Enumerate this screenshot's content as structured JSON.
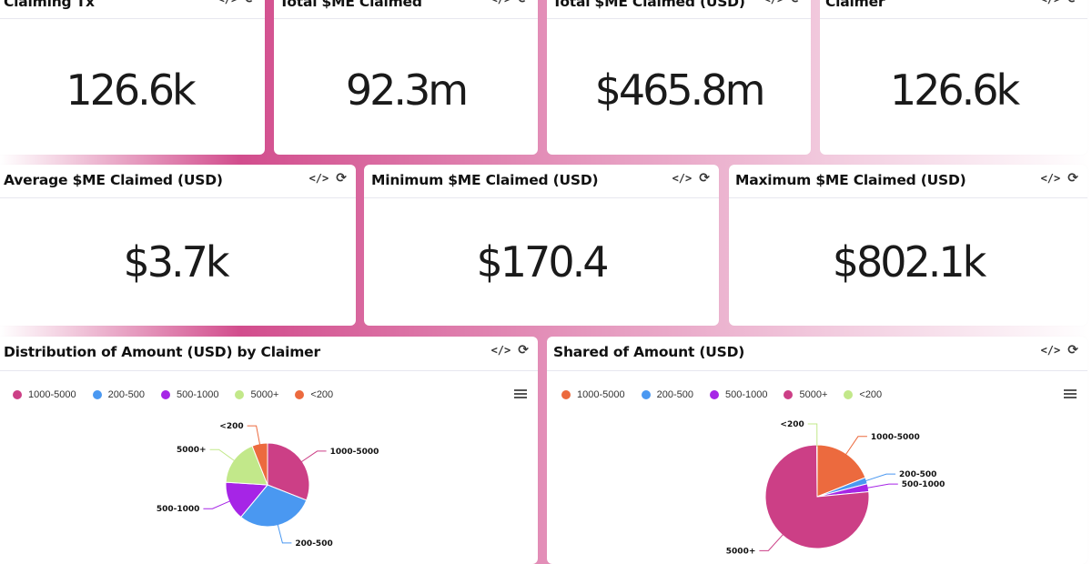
{
  "metrics": [
    {
      "title": "Claiming Tx",
      "value": "126.6k"
    },
    {
      "title": "Total $ME Claimed",
      "value": "92.3m"
    },
    {
      "title": "Total $ME Claimed (USD)",
      "value": "$465.8m"
    },
    {
      "title": "Claimer",
      "value": "126.6k"
    },
    {
      "title": "Average $ME Claimed (USD)",
      "value": "$3.7k"
    },
    {
      "title": "Minimum $ME Claimed (USD)",
      "value": "$170.4"
    },
    {
      "title": "Maximum $ME Claimed (USD)",
      "value": "$802.1k"
    }
  ],
  "icons": {
    "code": "code-icon",
    "refresh": "refresh-icon",
    "menu": "menu-icon"
  },
  "chart_data": [
    {
      "type": "pie",
      "title": "Distribution of Amount (USD) by Claimer",
      "legend_position": "top-left",
      "slices": [
        {
          "label": "1000-5000",
          "value": 31,
          "color": "#cc3f86"
        },
        {
          "label": "200-500",
          "value": 30,
          "color": "#4a98f1"
        },
        {
          "label": "500-1000",
          "value": 15,
          "color": "#a625e6"
        },
        {
          "label": "5000+",
          "value": 18,
          "color": "#c2e88a"
        },
        {
          "label": "<200",
          "value": 6,
          "color": "#ec6a3e"
        }
      ]
    },
    {
      "type": "pie",
      "title": "Shared of Amount (USD)",
      "legend_position": "top-left",
      "slices": [
        {
          "label": "1000-5000",
          "value": 19,
          "color": "#ec6a3e"
        },
        {
          "label": "200-500",
          "value": 2,
          "color": "#4a98f1"
        },
        {
          "label": "500-1000",
          "value": 2.5,
          "color": "#a625e6"
        },
        {
          "label": "5000+",
          "value": 76.5,
          "color": "#cc3f86"
        },
        {
          "label": "<200",
          "value": 0.1,
          "color": "#c2e88a"
        }
      ]
    }
  ]
}
